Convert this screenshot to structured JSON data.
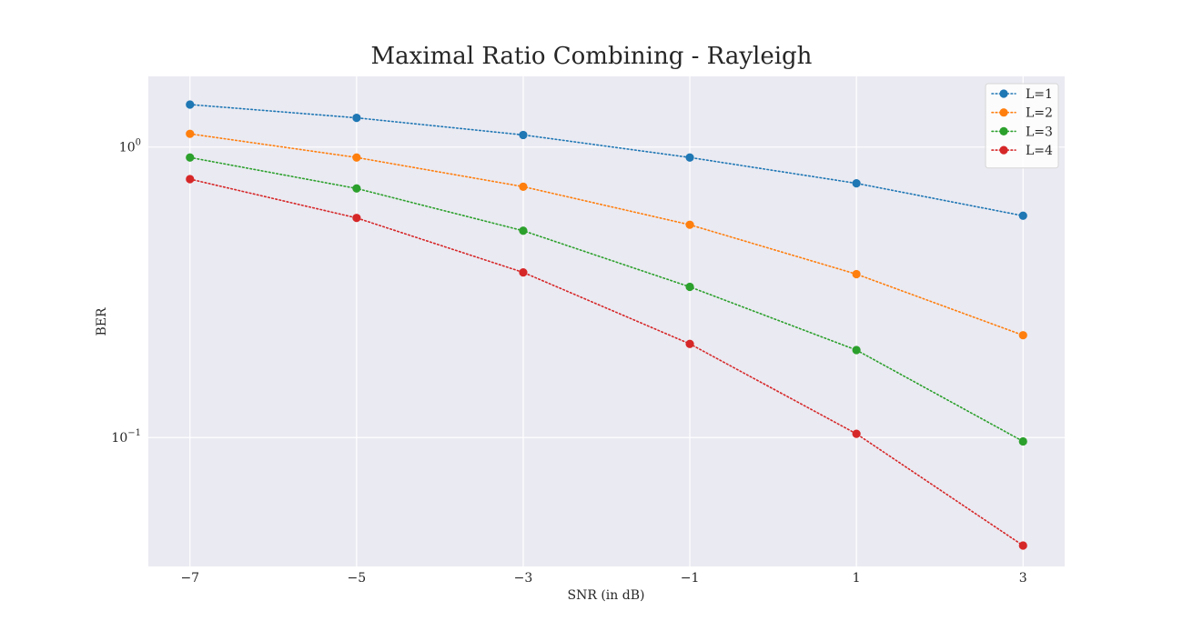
{
  "chart_data": {
    "type": "line",
    "title": "Maximal Ratio Combining - Rayleigh",
    "xlabel": "SNR (in dB)",
    "ylabel": "BER",
    "x": [
      -7,
      -5,
      -3,
      -1,
      1,
      3
    ],
    "x_ticks": [
      -7,
      -5,
      -3,
      -1,
      1,
      3
    ],
    "x_tick_labels": [
      "−7",
      "−5",
      "−3",
      "−1",
      "1",
      "3"
    ],
    "xlim": [
      -7.5,
      3.5
    ],
    "yscale": "log",
    "ylim": [
      0.036,
      1.75
    ],
    "y_ticks": [
      {
        "value": 1,
        "base": "10",
        "exp": "0"
      },
      {
        "value": 0.1,
        "base": "10",
        "exp": "−1"
      }
    ],
    "grid": true,
    "legend_position": "top-right",
    "series": [
      {
        "name": "L=1",
        "color": "#1f77b4",
        "values": [
          1.4,
          1.26,
          1.1,
          0.92,
          0.75,
          0.58
        ]
      },
      {
        "name": "L=2",
        "color": "#ff7f0e",
        "values": [
          1.11,
          0.92,
          0.73,
          0.54,
          0.365,
          0.225
        ]
      },
      {
        "name": "L=3",
        "color": "#2ca02c",
        "values": [
          0.92,
          0.72,
          0.515,
          0.33,
          0.2,
          0.097
        ]
      },
      {
        "name": "L=4",
        "color": "#d62728",
        "values": [
          0.775,
          0.57,
          0.37,
          0.21,
          0.103,
          0.0425
        ]
      }
    ]
  }
}
